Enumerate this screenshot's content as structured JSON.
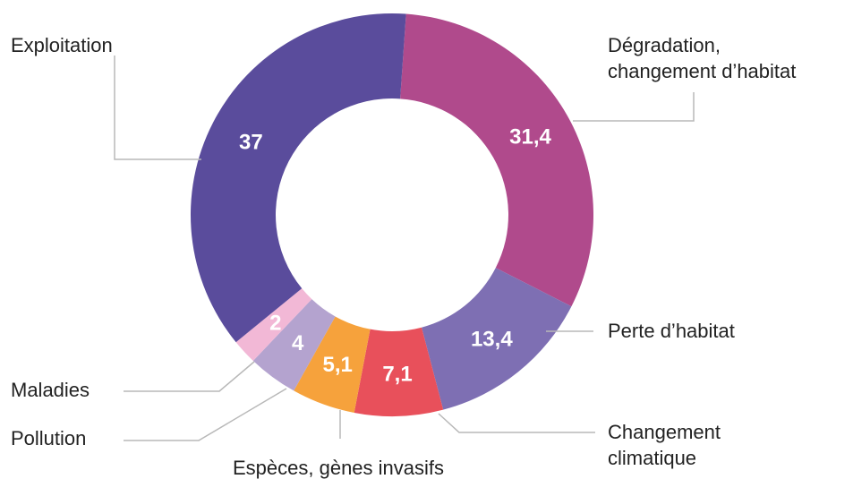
{
  "chart_data": {
    "type": "pie",
    "donut": true,
    "legend": "none",
    "categories": [
      "Dégradation, changement d'habitat",
      "Perte d'habitat",
      "Changement climatique",
      "Espèces, gènes invasifs",
      "Pollution",
      "Maladies",
      "Exploitation"
    ],
    "values": [
      31.4,
      13.4,
      7.1,
      5.1,
      4,
      2,
      37
    ],
    "value_labels": [
      "31,4",
      "13,4",
      "7,1",
      "5,1",
      "4",
      "2",
      "37"
    ],
    "colors": [
      "#b04a8c",
      "#7e6fb3",
      "#e8505b",
      "#f6a23c",
      "#b4a3cf",
      "#f2b8d6",
      "#5a4c9c"
    ],
    "labels": {
      "exploitation": [
        "Exploitation"
      ],
      "degradation": [
        "Dégradation,",
        "changement d’habitat"
      ],
      "perte": [
        "Perte d’habitat"
      ],
      "climat": [
        "Changement",
        "climatique"
      ],
      "especes": [
        "Espèces, gènes invasifs"
      ],
      "pollution": [
        "Pollution"
      ],
      "maladies": [
        "Maladies"
      ]
    }
  }
}
